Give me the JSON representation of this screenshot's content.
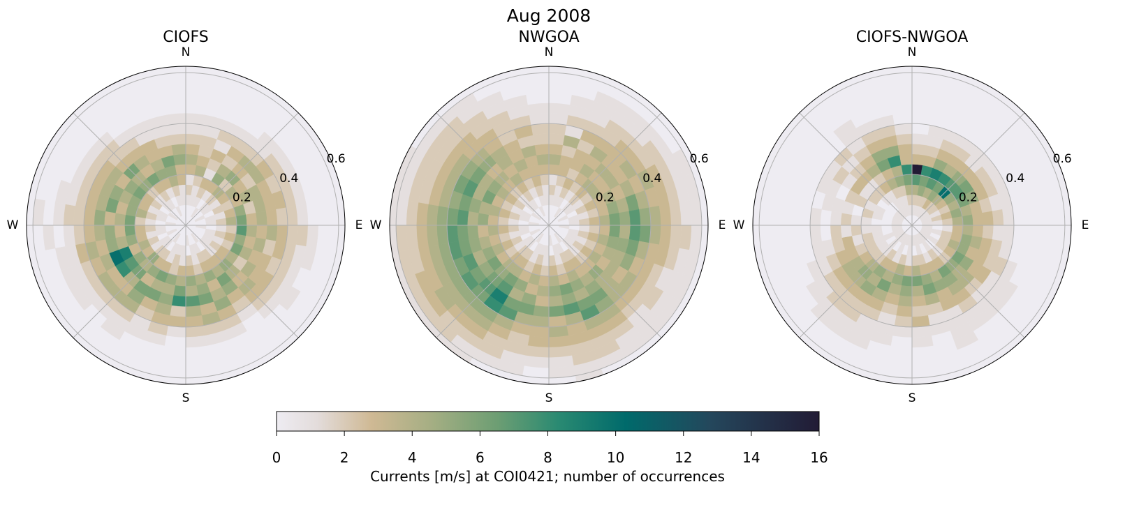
{
  "chart_data": {
    "type": "heatmap",
    "subtype": "polar-histogram",
    "suptitle": "Aug 2008",
    "theta_bins_deg": 10,
    "theta_origin": "N",
    "theta_direction": "clockwise",
    "r_bin_width": 0.04,
    "rlim": [
      0,
      0.625
    ],
    "r_ticks": [
      0.2,
      0.4,
      0.6
    ],
    "r_tick_labels": [
      "0.2",
      "0.4",
      "0.6"
    ],
    "theta_grid_deg": 45,
    "direction_labels": {
      "N": "N",
      "E": "E",
      "S": "S",
      "W": "W"
    },
    "count_encoding": "each string = one 10-degree sector (clockwise from N); each char = hex count per radial bin (g = 16)",
    "panels": [
      {
        "title": "CIOFS",
        "counts": [
          "0012134321100000",
          "0011243221100000",
          "0012312312100000",
          "0101354232100000",
          "0012425342110000",
          "0011343243210000",
          "0102234432210000",
          "0011352433210000",
          "0012463432210000",
          "0101274343221000",
          "0012353423211000",
          "0011264332210000",
          "0012342433211000",
          "0011354343210000",
          "0102346532100000",
          "0012353453210000",
          "0011245634210000",
          "0102354743210000",
          "0011346823100000",
          "0012254543210000",
          "0011364632110000",
          "0102353654211000",
          "0012546434210000",
          "0011357834211000",
          "0102439a43211000",
          "0011354534311000",
          "0012363543210100",
          "0101264353221010",
          "0012453643211000",
          "0011354543210000",
          "0102365343210000",
          "0011254632210000",
          "0012363432100000",
          "0101354331100000",
          "0012456321100000",
          "0011335421100000"
        ]
      },
      {
        "title": "NWGOA",
        "counts": [
          "0012134322110000",
          "0011233241211000",
          "0012323323211100",
          "0101234343221100",
          "0012343433321100",
          "0011243434322100",
          "0102334343432110",
          "0011235464332110",
          "0012346575432110",
          "0101236476432210",
          "0012345564332110",
          "0011234453321110",
          "0012343434322110",
          "0011235444321110",
          "0102334565432110",
          "0012345467432210",
          "0011236574332211",
          "0102345463432110",
          "0011234354332100",
          "0012343564322110",
          "0011235467432210",
          "0102346798543211",
          "0012345676543221",
          "0011236567544321",
          "0102345476543321",
          "0011234567543221",
          "0012343567543221",
          "0101235476543211",
          "0012344565432211",
          "0011236476432211",
          "0102345465432210",
          "0011234354332210",
          "0012343443322110",
          "0101234332221100",
          "0012333423211000",
          "0011234322110000"
        ]
      },
      {
        "title": "CIOFS-NWGOA",
        "counts": [
          "01247g3210000000",
          "0125683211000000",
          "0124795321000000",
          "0135684321000000",
          "0124a75311000000",
          "0123576321000000",
          "0112465321000000",
          "0123543211000000",
          "0112453321000000",
          "0101343211000000",
          "0112354321000000",
          "0102453322100000",
          "0112365331110000",
          "0101254421110000",
          "0112365432110000",
          "0101345331111000",
          "0112356421100000",
          "0102464323110000",
          "0111365432100000",
          "0102454321110000",
          "0111346432111000",
          "0102354532211000",
          "0111245432211000",
          "0101234432110000",
          "0111223321100000",
          "0101213211000000",
          "0101121201000000",
          "0100112101000000",
          "0101201110000000",
          "0101122011000000",
          "0100213121000000",
          "0101213212000000",
          "0111324321110000",
          "0112436532100000",
          "0112548532100000",
          "0124683321000000"
        ]
      }
    ],
    "colorbar": {
      "label": "Currents [m/s] at COI0421; number of occurrences",
      "range": [
        0,
        16
      ],
      "ticks": [
        0,
        2,
        4,
        6,
        8,
        10,
        12,
        14,
        16
      ],
      "tick_labels": [
        "0",
        "2",
        "4",
        "6",
        "8",
        "10",
        "12",
        "14",
        "16"
      ],
      "colormap_stops": [
        {
          "v": 0,
          "c": "#eeecf2"
        },
        {
          "v": 1.2,
          "c": "#e3dcdb"
        },
        {
          "v": 2.8,
          "c": "#cfb994"
        },
        {
          "v": 4.6,
          "c": "#a4ae83"
        },
        {
          "v": 6.5,
          "c": "#6d9e73"
        },
        {
          "v": 8.3,
          "c": "#2a8a72"
        },
        {
          "v": 10.3,
          "c": "#006a6b"
        },
        {
          "v": 12.8,
          "c": "#24475c"
        },
        {
          "v": 16,
          "c": "#221b35"
        }
      ]
    }
  }
}
